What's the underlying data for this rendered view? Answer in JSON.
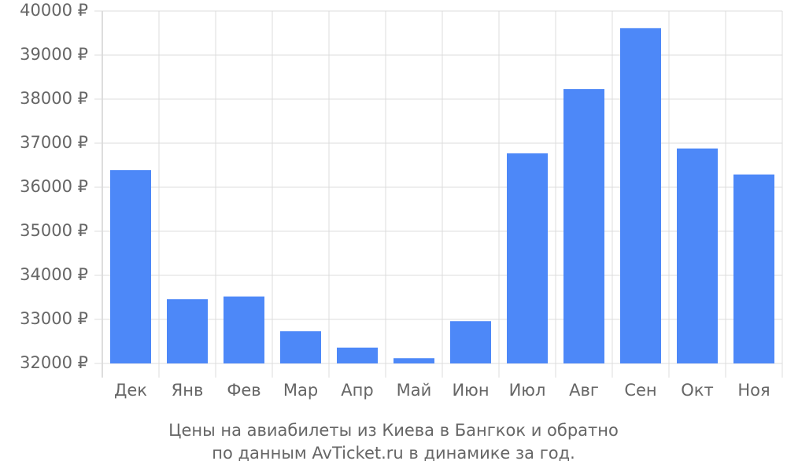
{
  "chart_data": {
    "type": "bar",
    "title": [
      "Цены на авиабилеты из Киева в Бангкок и обратно",
      "по данным AvTicket.ru в динамике за год."
    ],
    "categories": [
      "Дек",
      "Янв",
      "Фев",
      "Мар",
      "Апр",
      "Май",
      "Июн",
      "Июл",
      "Авг",
      "Сен",
      "Окт",
      "Ноя"
    ],
    "values": [
      36390,
      33460,
      33520,
      32730,
      32360,
      32120,
      32960,
      36770,
      38230,
      39610,
      36880,
      36290
    ],
    "color": "#4d88f8",
    "ylim": [
      32000,
      40000
    ],
    "yticks": [
      {
        "value": 32000,
        "label": "32000 ₽"
      },
      {
        "value": 33000,
        "label": "33000 ₽"
      },
      {
        "value": 34000,
        "label": "34000 ₽"
      },
      {
        "value": 35000,
        "label": "35000 ₽"
      },
      {
        "value": 36000,
        "label": "36000 ₽"
      },
      {
        "value": 37000,
        "label": "37000 ₽"
      },
      {
        "value": 38000,
        "label": "38000 ₽"
      },
      {
        "value": 39000,
        "label": "39000 ₽"
      },
      {
        "value": 40000,
        "label": "40000 ₽"
      }
    ],
    "grid": true
  }
}
